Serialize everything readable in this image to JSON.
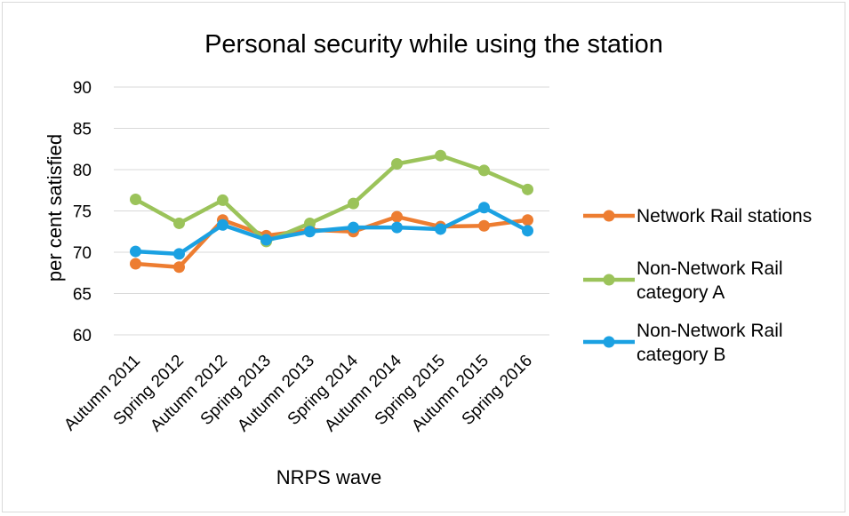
{
  "chart_data": {
    "type": "line",
    "title": "Personal security while using the station",
    "xlabel": "NRPS wave",
    "ylabel": "per cent satisfied",
    "ylim": [
      60,
      90
    ],
    "yticks": [
      60,
      65,
      70,
      75,
      80,
      85,
      90
    ],
    "grid": true,
    "legend_position": "right",
    "categories": [
      "Autumn 2011",
      "Spring 2012",
      "Autumn 2012",
      "Spring 2013",
      "Autumn 2013",
      "Spring 2014",
      "Autumn 2014",
      "Spring 2015",
      "Autumn 2015",
      "Spring 2016"
    ],
    "series": [
      {
        "name": "Network Rail stations",
        "legend_lines": [
          "Network Rail stations"
        ],
        "color": "#ed7d31",
        "values": [
          68.6,
          68.2,
          73.9,
          72.0,
          72.7,
          72.5,
          74.3,
          73.1,
          73.2,
          73.9
        ]
      },
      {
        "name": "Non-Network Rail category A",
        "legend_lines": [
          "Non-Network Rail",
          "category A"
        ],
        "color": "#9bc35a",
        "values": [
          76.4,
          73.5,
          76.3,
          71.3,
          73.5,
          75.9,
          80.7,
          81.7,
          79.9,
          77.6
        ]
      },
      {
        "name": "Non-Network Rail category B",
        "legend_lines": [
          "Non-Network Rail",
          "category B"
        ],
        "color": "#1ba1e2",
        "values": [
          70.1,
          69.8,
          73.3,
          71.5,
          72.5,
          73.0,
          73.0,
          72.8,
          75.4,
          72.6
        ]
      }
    ]
  }
}
